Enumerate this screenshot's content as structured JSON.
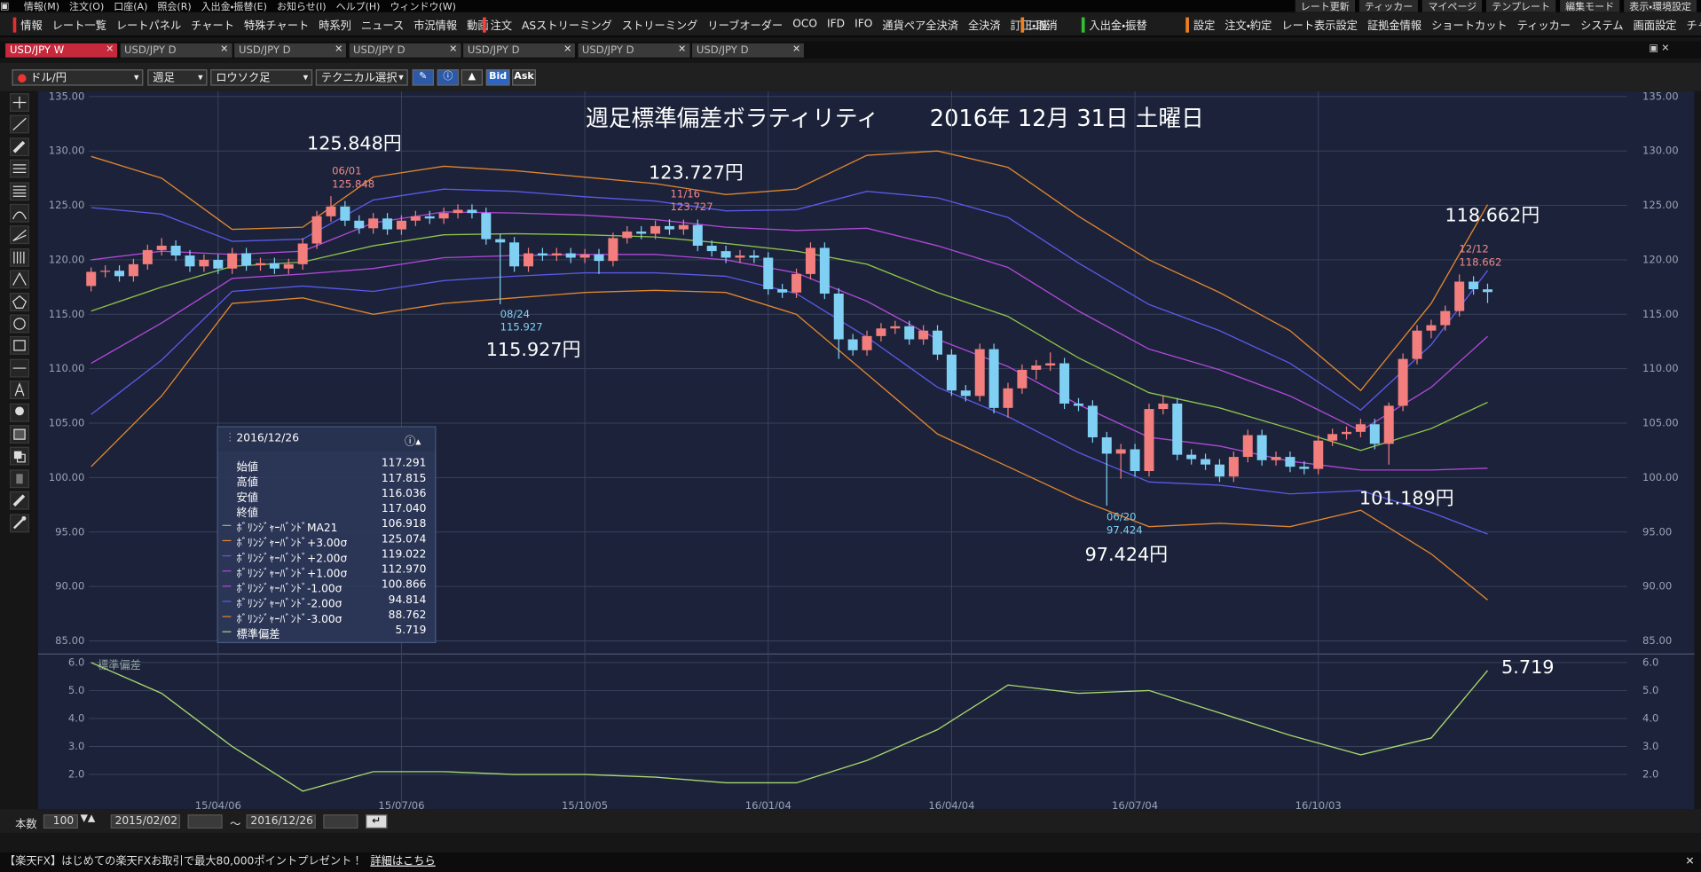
{
  "menu": [
    "情報(M)",
    "注文(O)",
    "口座(A)",
    "照会(R)",
    "入出金・振替(E)",
    "お知らせ(I)",
    "ヘルプ(H)",
    "ウィンドウ(W)"
  ],
  "menu_right": [
    "レート更新",
    "ティッカー",
    "マイページ",
    "テンプレート",
    "編集モード",
    "表示・環境設定"
  ],
  "toolbar": [
    {
      "color": "#e03030",
      "items": [
        "情報",
        "レート一覧",
        "レートパネル",
        "チャート",
        "特殊チャート",
        "時系列",
        "ニュース",
        "市況情報",
        "動画"
      ]
    },
    {
      "color": "#ff3a3a",
      "items": [
        "注文",
        "ASストリーミング",
        "ストリーミング",
        "リーブオーダー",
        "OCO",
        "IFD",
        "IFO",
        "通貨ペア全決済",
        "全決済",
        "訂正・取消"
      ]
    },
    {
      "color": "#f08020",
      "items": [
        "口座"
      ]
    },
    {
      "color": "#30c030",
      "items": [
        "入出金・振替"
      ]
    },
    {
      "color": "#f08020",
      "items": [
        "設定",
        "注文・約定",
        "レート表示設定",
        "証拠金情報",
        "ショートカット",
        "ティッカー",
        "システム",
        "画面設定",
        "チャート"
      ]
    }
  ],
  "tabs": [
    "USD/JPY W",
    "USD/JPY D",
    "USD/JPY D",
    "USD/JPY D",
    "USD/JPY D",
    "USD/JPY D",
    "USD/JPY D"
  ],
  "controls": {
    "pair": "ドル/円",
    "period": "週足",
    "chart_type": "ロウソク足",
    "technical": "テクニカル選択",
    "bid": "Bid",
    "ask": "Ask"
  },
  "chart_data": {
    "type": "candlestick",
    "title": "週足標準偏差ボラティリティ",
    "subtitle": "2016年 12月 31日 土曜日",
    "up_color": "#f27e7e",
    "down_color": "#80d0f4",
    "grid": true,
    "xlim": [
      -3.77,
      108.9
    ],
    "xticks": [
      {
        "value": 9,
        "label": "15/04/06"
      },
      {
        "value": 22,
        "label": "15/07/06"
      },
      {
        "value": 35,
        "label": "15/10/05"
      },
      {
        "value": 48,
        "label": "16/01/04"
      },
      {
        "value": 61,
        "label": "16/04/04"
      },
      {
        "value": 74,
        "label": "16/07/04"
      },
      {
        "value": 87,
        "label": "16/10/03"
      }
    ],
    "ylim": [
      84.1,
      135.5
    ],
    "yticks": [
      {
        "value": 135,
        "label": "135.00"
      },
      {
        "value": 130,
        "label": "130.00"
      },
      {
        "value": 125,
        "label": "125.00"
      },
      {
        "value": 120,
        "label": "120.00"
      },
      {
        "value": 115,
        "label": "115.00"
      },
      {
        "value": 110,
        "label": "110.00"
      },
      {
        "value": 105,
        "label": "105.00"
      },
      {
        "value": 100,
        "label": "100.00"
      },
      {
        "value": 95,
        "label": "95.00"
      },
      {
        "value": 90,
        "label": "90.00"
      },
      {
        "value": 85,
        "label": "85.00"
      }
    ],
    "candles": [
      [
        117.6,
        119.3,
        117.1,
        118.9
      ],
      [
        118.9,
        119.5,
        118.4,
        119.0
      ],
      [
        119.0,
        119.5,
        118.0,
        118.5
      ],
      [
        118.5,
        120.1,
        118.0,
        119.6
      ],
      [
        119.6,
        121.4,
        119.1,
        120.9
      ],
      [
        120.9,
        122.0,
        120.4,
        121.3
      ],
      [
        121.3,
        121.8,
        119.9,
        120.4
      ],
      [
        120.4,
        120.9,
        118.9,
        119.4
      ],
      [
        119.4,
        120.5,
        118.9,
        120.0
      ],
      [
        120.0,
        120.5,
        118.7,
        119.2
      ],
      [
        119.2,
        121.1,
        118.7,
        120.6
      ],
      [
        120.6,
        121.1,
        119.0,
        119.5
      ],
      [
        119.5,
        120.2,
        119.0,
        119.7
      ],
      [
        119.7,
        120.2,
        118.7,
        119.2
      ],
      [
        119.2,
        120.1,
        118.7,
        119.6
      ],
      [
        119.6,
        122.0,
        119.1,
        121.5
      ],
      [
        121.5,
        124.5,
        121.0,
        124.0
      ],
      [
        124.0,
        125.848,
        123.5,
        124.9
      ],
      [
        124.9,
        125.4,
        123.1,
        123.6
      ],
      [
        123.6,
        124.1,
        122.4,
        122.9
      ],
      [
        122.9,
        124.3,
        122.4,
        123.8
      ],
      [
        123.8,
        124.3,
        122.3,
        122.8
      ],
      [
        122.8,
        124.1,
        122.3,
        123.6
      ],
      [
        123.6,
        124.5,
        123.1,
        124.0
      ],
      [
        124.0,
        124.5,
        123.3,
        123.8
      ],
      [
        123.8,
        124.8,
        123.3,
        124.3
      ],
      [
        124.3,
        125.1,
        123.8,
        124.6
      ],
      [
        124.6,
        125.1,
        123.8,
        124.3
      ],
      [
        124.3,
        124.8,
        121.4,
        121.9
      ],
      [
        121.9,
        122.4,
        115.927,
        121.6
      ],
      [
        121.6,
        122.1,
        118.9,
        119.4
      ],
      [
        119.4,
        121.1,
        118.9,
        120.6
      ],
      [
        120.6,
        121.1,
        119.9,
        120.4
      ],
      [
        120.4,
        121.1,
        119.9,
        120.6
      ],
      [
        120.6,
        121.1,
        119.7,
        120.2
      ],
      [
        120.2,
        121.0,
        119.7,
        120.5
      ],
      [
        120.5,
        121.0,
        118.7,
        119.9
      ],
      [
        119.9,
        122.5,
        119.4,
        122.0
      ],
      [
        122.0,
        123.1,
        121.5,
        122.6
      ],
      [
        122.6,
        123.1,
        121.9,
        122.4
      ],
      [
        122.4,
        123.6,
        121.9,
        123.1
      ],
      [
        123.1,
        123.727,
        122.3,
        122.8
      ],
      [
        122.8,
        123.7,
        122.3,
        123.2
      ],
      [
        123.2,
        123.7,
        120.8,
        121.3
      ],
      [
        121.3,
        121.8,
        120.3,
        120.8
      ],
      [
        120.8,
        121.3,
        119.7,
        120.2
      ],
      [
        120.2,
        120.9,
        119.7,
        120.4
      ],
      [
        120.4,
        120.9,
        119.7,
        120.2
      ],
      [
        120.2,
        120.7,
        116.8,
        117.3
      ],
      [
        117.3,
        117.8,
        116.5,
        117.0
      ],
      [
        117.0,
        119.2,
        116.5,
        118.7
      ],
      [
        118.7,
        121.6,
        118.2,
        121.1
      ],
      [
        121.1,
        121.6,
        116.4,
        116.9
      ],
      [
        116.9,
        117.4,
        110.9,
        112.7
      ],
      [
        112.7,
        113.2,
        111.2,
        111.7
      ],
      [
        111.7,
        113.5,
        111.2,
        113.0
      ],
      [
        113.0,
        114.2,
        112.5,
        113.7
      ],
      [
        113.7,
        114.4,
        113.2,
        113.9
      ],
      [
        113.9,
        114.4,
        112.2,
        112.7
      ],
      [
        112.7,
        114.0,
        112.2,
        113.5
      ],
      [
        113.5,
        114.0,
        110.8,
        111.3
      ],
      [
        111.3,
        111.8,
        107.5,
        108.0
      ],
      [
        108.0,
        108.5,
        107.0,
        107.5
      ],
      [
        107.5,
        112.3,
        107.0,
        111.8
      ],
      [
        111.8,
        112.3,
        105.9,
        106.4
      ],
      [
        106.4,
        108.7,
        105.5,
        108.2
      ],
      [
        108.2,
        110.4,
        107.7,
        109.9
      ],
      [
        109.9,
        110.8,
        109.0,
        110.3
      ],
      [
        110.3,
        111.5,
        109.8,
        110.5
      ],
      [
        110.5,
        111.0,
        106.3,
        106.8
      ],
      [
        106.8,
        107.3,
        106.1,
        106.6
      ],
      [
        106.6,
        107.1,
        103.2,
        103.7
      ],
      [
        103.7,
        104.2,
        97.424,
        102.2
      ],
      [
        102.2,
        103.1,
        99.9,
        102.6
      ],
      [
        102.6,
        103.1,
        100.1,
        100.6
      ],
      [
        100.6,
        106.8,
        100.1,
        106.3
      ],
      [
        106.3,
        107.5,
        105.8,
        106.8
      ],
      [
        106.8,
        107.3,
        101.6,
        102.1
      ],
      [
        102.1,
        102.6,
        101.2,
        101.7
      ],
      [
        101.7,
        102.2,
        100.7,
        101.2
      ],
      [
        101.2,
        101.7,
        99.6,
        100.1
      ],
      [
        100.1,
        102.4,
        99.6,
        101.9
      ],
      [
        101.9,
        104.4,
        101.4,
        103.9
      ],
      [
        103.9,
        104.4,
        101.1,
        101.6
      ],
      [
        101.6,
        102.4,
        101.1,
        101.9
      ],
      [
        101.9,
        102.4,
        100.5,
        101.0
      ],
      [
        101.0,
        101.5,
        100.3,
        100.8
      ],
      [
        100.8,
        103.9,
        100.3,
        103.4
      ],
      [
        103.4,
        104.5,
        102.9,
        104.0
      ],
      [
        104.0,
        104.7,
        103.5,
        104.2
      ],
      [
        104.2,
        105.4,
        103.7,
        104.9
      ],
      [
        104.9,
        105.4,
        102.6,
        103.1
      ],
      [
        103.1,
        106.9,
        101.189,
        106.6
      ],
      [
        106.6,
        111.4,
        106.1,
        110.9
      ],
      [
        110.9,
        114.0,
        110.4,
        113.5
      ],
      [
        113.5,
        114.5,
        112.8,
        114.0
      ],
      [
        114.0,
        115.8,
        113.5,
        115.3
      ],
      [
        115.3,
        118.662,
        114.8,
        118.0
      ],
      [
        118.0,
        118.5,
        116.8,
        117.3
      ],
      [
        117.291,
        117.815,
        116.036,
        117.04
      ]
    ],
    "series": [
      {
        "name": "ﾎﾞﾘﾝｼﾞｬｰﾊﾞﾝﾄﾞMA21",
        "color": "#8ec24a",
        "x": [
          0,
          5,
          10,
          15,
          20,
          25,
          30,
          35,
          40,
          45,
          50,
          55,
          60,
          65,
          70,
          75,
          80,
          85,
          90,
          95,
          99
        ],
        "values": [
          115.3,
          117.5,
          119.4,
          119.8,
          121.3,
          122.3,
          122.4,
          122.3,
          122.1,
          121.5,
          120.8,
          119.6,
          117.0,
          114.8,
          111.0,
          107.8,
          106.4,
          104.5,
          102.5,
          104.5,
          106.918
        ]
      },
      {
        "name": "ﾎﾞﾘﾝｼﾞｬｰﾊﾞﾝﾄﾞ+3.00σ",
        "color": "#e0862e",
        "x": [
          0,
          5,
          10,
          15,
          20,
          25,
          30,
          35,
          40,
          45,
          50,
          55,
          60,
          65,
          70,
          75,
          80,
          85,
          90,
          95,
          99
        ],
        "values": [
          129.5,
          127.5,
          122.8,
          123.0,
          127.6,
          128.6,
          128.2,
          127.6,
          127.0,
          126.0,
          126.5,
          129.6,
          130.0,
          128.5,
          124.0,
          120.0,
          117.0,
          113.5,
          108.0,
          116.0,
          125.074
        ]
      },
      {
        "name": "ﾎﾞﾘﾝｼﾞｬｰﾊﾞﾝﾄﾞ+2.00σ",
        "color": "#5a5ae8",
        "x": [
          0,
          5,
          10,
          15,
          20,
          25,
          30,
          35,
          40,
          45,
          50,
          55,
          60,
          65,
          70,
          75,
          80,
          85,
          90,
          95,
          99
        ],
        "values": [
          124.8,
          124.2,
          121.7,
          121.9,
          125.5,
          126.5,
          126.3,
          125.8,
          125.4,
          124.5,
          124.6,
          126.3,
          125.7,
          123.9,
          119.7,
          115.9,
          113.5,
          110.5,
          106.2,
          112.2,
          119.022
        ]
      },
      {
        "name": "ﾎﾞﾘﾝｼﾞｬｰﾊﾞﾝﾄﾞ+1.00σ",
        "color": "#b048d8",
        "x": [
          0,
          5,
          10,
          15,
          20,
          25,
          30,
          35,
          40,
          45,
          50,
          55,
          60,
          65,
          70,
          75,
          80,
          85,
          90,
          95,
          99
        ],
        "values": [
          120.0,
          120.8,
          120.5,
          120.8,
          123.4,
          124.4,
          124.3,
          124.1,
          123.7,
          123.0,
          122.7,
          122.9,
          121.3,
          119.3,
          115.3,
          111.8,
          109.9,
          107.5,
          104.3,
          108.3,
          112.97
        ]
      },
      {
        "name": "ﾎﾞﾘﾝｼﾞｬｰﾊﾞﾝﾄﾞ-1.00σ",
        "color": "#b048d8",
        "x": [
          0,
          5,
          10,
          15,
          20,
          25,
          30,
          35,
          40,
          45,
          50,
          55,
          60,
          65,
          70,
          75,
          80,
          85,
          90,
          95,
          99
        ],
        "values": [
          110.5,
          114.2,
          118.3,
          118.7,
          119.2,
          120.2,
          120.4,
          120.5,
          120.5,
          120.0,
          118.8,
          116.2,
          112.7,
          110.2,
          106.7,
          103.7,
          102.9,
          101.5,
          100.7,
          100.7,
          100.866
        ]
      },
      {
        "name": "ﾎﾞﾘﾝｼﾞｬｰﾊﾞﾝﾄﾞ-2.00σ",
        "color": "#5a5ae8",
        "x": [
          0,
          5,
          10,
          15,
          20,
          25,
          30,
          35,
          40,
          45,
          50,
          55,
          60,
          65,
          70,
          75,
          80,
          85,
          90,
          95,
          99
        ],
        "values": [
          105.8,
          110.8,
          117.1,
          117.6,
          117.1,
          118.1,
          118.5,
          118.8,
          118.8,
          118.5,
          116.9,
          112.9,
          108.3,
          105.6,
          102.3,
          99.6,
          99.3,
          98.5,
          98.8,
          96.8,
          94.814
        ]
      },
      {
        "name": "ﾎﾞﾘﾝｼﾞｬｰﾊﾞﾝﾄﾞ-3.00σ",
        "color": "#e0862e",
        "x": [
          0,
          5,
          10,
          15,
          20,
          25,
          30,
          35,
          40,
          45,
          50,
          55,
          60,
          65,
          70,
          75,
          80,
          85,
          90,
          95,
          99
        ],
        "values": [
          101.0,
          107.5,
          116.0,
          116.5,
          115.0,
          116.0,
          116.5,
          117.0,
          117.2,
          117.0,
          115.0,
          109.5,
          104.0,
          101.0,
          98.0,
          95.5,
          95.8,
          95.5,
          97.0,
          93.0,
          88.762
        ]
      }
    ],
    "annotations": [
      {
        "label": "125.848円",
        "date": "06/01",
        "price": "125.848",
        "color": "#f08a8a"
      },
      {
        "label": "115.927円",
        "date": "08/24",
        "price": "115.927",
        "color": "#80d0f4"
      },
      {
        "label": "123.727円",
        "date": "11/16",
        "price": "123.727",
        "color": "#f08a8a"
      },
      {
        "label": "97.424円",
        "date": "06/20",
        "price": "97.424",
        "color": "#80d0f4"
      },
      {
        "label": "118.662円",
        "date": "12/12",
        "price": "118.662",
        "color": "#f08a8a"
      },
      {
        "label": "101.189円"
      }
    ],
    "subchart": {
      "type": "line",
      "title": "標準偏差",
      "color": "#a8d870",
      "x": [
        0,
        5,
        10,
        15,
        20,
        25,
        30,
        35,
        40,
        45,
        50,
        55,
        60,
        65,
        70,
        75,
        80,
        85,
        90,
        95,
        99
      ],
      "values": [
        6.0,
        4.9,
        3.0,
        1.4,
        2.1,
        2.1,
        2.0,
        2.0,
        1.9,
        1.7,
        1.7,
        2.5,
        3.6,
        5.2,
        4.9,
        5.0,
        4.2,
        3.4,
        2.7,
        3.3,
        5.719
      ],
      "ylim": [
        0.8,
        6.23
      ],
      "yticks": [
        {
          "value": 6,
          "label": "6.0"
        },
        {
          "value": 5,
          "label": "5.0"
        },
        {
          "value": 4,
          "label": "4.0"
        },
        {
          "value": 3,
          "label": "3.0"
        },
        {
          "value": 2,
          "label": "2.0"
        }
      ]
    }
  },
  "info_panel": {
    "date": "2016/12/26",
    "rows": [
      {
        "label": "始値",
        "value": "117.291"
      },
      {
        "label": "高値",
        "value": "117.815"
      },
      {
        "label": "安値",
        "value": "116.036"
      },
      {
        "label": "終値",
        "value": "117.040"
      }
    ],
    "band_values": [
      "106.918",
      "125.074",
      "119.022",
      "112.970",
      "100.866",
      "94.814",
      "88.762"
    ],
    "std_value": "5.719"
  },
  "footer": {
    "count_label": "本数",
    "count": "100",
    "from": "2015/02/02",
    "tilde": "～",
    "to": "2016/12/26"
  },
  "status": {
    "text": "【楽天FX】はじめての楽天FXお取引で最大80,000ポイントプレゼント！",
    "link": "詳細はこちら"
  }
}
